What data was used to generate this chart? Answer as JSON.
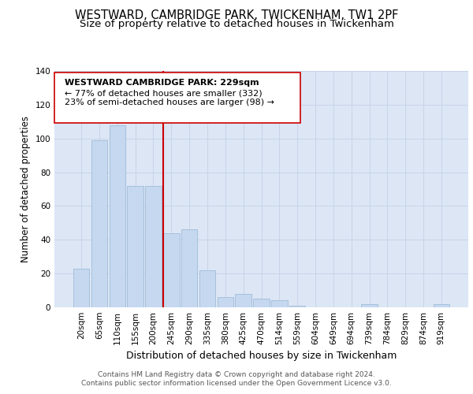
{
  "title": "WESTWARD, CAMBRIDGE PARK, TWICKENHAM, TW1 2PF",
  "subtitle": "Size of property relative to detached houses in Twickenham",
  "xlabel": "Distribution of detached houses by size in Twickenham",
  "ylabel": "Number of detached properties",
  "categories": [
    "20sqm",
    "65sqm",
    "110sqm",
    "155sqm",
    "200sqm",
    "245sqm",
    "290sqm",
    "335sqm",
    "380sqm",
    "425sqm",
    "470sqm",
    "514sqm",
    "559sqm",
    "604sqm",
    "649sqm",
    "694sqm",
    "739sqm",
    "784sqm",
    "829sqm",
    "874sqm",
    "919sqm"
  ],
  "values": [
    23,
    99,
    108,
    72,
    72,
    44,
    46,
    22,
    6,
    8,
    5,
    4,
    1,
    0,
    0,
    0,
    2,
    0,
    0,
    0,
    2
  ],
  "bar_color": "#c5d8f0",
  "bar_edge_color": "#a0bcd8",
  "grid_color": "#c8d4e8",
  "background_color": "#dce6f5",
  "marker_line_color": "#cc0000",
  "annotation_line1": "WESTWARD CAMBRIDGE PARK: 229sqm",
  "annotation_line2": "← 77% of detached houses are smaller (332)",
  "annotation_line3": "23% of semi-detached houses are larger (98) →",
  "annotation_box_color": "#cc0000",
  "ylim": [
    0,
    140
  ],
  "yticks": [
    0,
    20,
    40,
    60,
    80,
    100,
    120,
    140
  ],
  "footer1": "Contains HM Land Registry data © Crown copyright and database right 2024.",
  "footer2": "Contains public sector information licensed under the Open Government Licence v3.0.",
  "title_fontsize": 10.5,
  "subtitle_fontsize": 9.5,
  "xlabel_fontsize": 9,
  "ylabel_fontsize": 8.5,
  "tick_fontsize": 7.5,
  "footer_fontsize": 6.5
}
